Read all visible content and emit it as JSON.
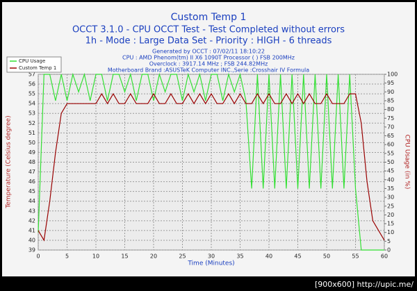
{
  "chart_data": {
    "type": "line",
    "title": "Custom Temp 1",
    "subtitles": [
      "OCCT 3.1.0 - CPU OCCT Test - Test Completed without errors",
      "1h - Mode : Large Data Set - Priority : HIGH - 6 threads"
    ],
    "info": [
      "Generated by OCCT : 07/02/11 18:10:22",
      "CPU : AMD Phenom(tm) II X6 1090T Processor (  ) FSB 200MHz",
      "Overclock : 3917.14 MHz ; FSB 244.82MHz",
      "Motherboard Brand :ASUSTeK Computer INC.,Serie :Crosshair IV Formula"
    ],
    "x_label": "Time (Minutes)",
    "y_label": "Temperature (Celsius degree)",
    "y2_label": "CPU Usage (in %)",
    "x": [
      0,
      1,
      2,
      3,
      4,
      5,
      6,
      7,
      8,
      9,
      10,
      11,
      12,
      13,
      14,
      15,
      16,
      17,
      18,
      19,
      20,
      21,
      22,
      23,
      24,
      25,
      26,
      27,
      28,
      29,
      30,
      31,
      32,
      33,
      34,
      35,
      36,
      37,
      38,
      39,
      40,
      41,
      42,
      43,
      44,
      45,
      46,
      47,
      48,
      49,
      50,
      51,
      52,
      53,
      54,
      55,
      56,
      57,
      58,
      59,
      60
    ],
    "series": [
      {
        "name": "CPU Usage",
        "color": "#33e033",
        "axis": "y2",
        "values": [
          10,
          100,
          100,
          85,
          100,
          85,
          100,
          90,
          100,
          85,
          100,
          100,
          85,
          100,
          100,
          90,
          100,
          85,
          100,
          100,
          85,
          100,
          90,
          100,
          100,
          85,
          100,
          90,
          100,
          85,
          100,
          100,
          85,
          100,
          90,
          100,
          85,
          35,
          100,
          35,
          100,
          35,
          100,
          35,
          100,
          35,
          100,
          35,
          100,
          35,
          100,
          35,
          100,
          35,
          100,
          35,
          0,
          0,
          0,
          0,
          0
        ]
      },
      {
        "name": "Custom Temp 1",
        "color": "#990000",
        "values": [
          41,
          40,
          44,
          49,
          53,
          54,
          54,
          54,
          54,
          54,
          54,
          55,
          54,
          55,
          54,
          54,
          55,
          54,
          54,
          54,
          55,
          54,
          54,
          55,
          54,
          54,
          55,
          54,
          55,
          54,
          55,
          54,
          54,
          55,
          54,
          55,
          54,
          54,
          55,
          54,
          55,
          54,
          54,
          55,
          54,
          55,
          54,
          55,
          54,
          54,
          55,
          54,
          54,
          54,
          55,
          55,
          52,
          46,
          42,
          41,
          40
        ]
      }
    ],
    "xlim": [
      0,
      60
    ],
    "xticks": [
      0,
      5,
      10,
      15,
      20,
      25,
      30,
      35,
      40,
      45,
      50,
      55,
      60
    ],
    "ylim": [
      39,
      57
    ],
    "yticks": [
      39,
      40,
      41,
      42,
      43,
      44,
      45,
      46,
      47,
      48,
      49,
      50,
      51,
      52,
      53,
      54,
      55,
      56,
      57
    ],
    "y2lim": [
      0,
      100
    ],
    "y2ticks": [
      0,
      5,
      10,
      15,
      20,
      25,
      30,
      35,
      40,
      45,
      50,
      55,
      60,
      65,
      70,
      75,
      80,
      85,
      90,
      95,
      100
    ],
    "grid": true,
    "legend": "top-left"
  },
  "watermark": "[900x600] http://upic.me/"
}
